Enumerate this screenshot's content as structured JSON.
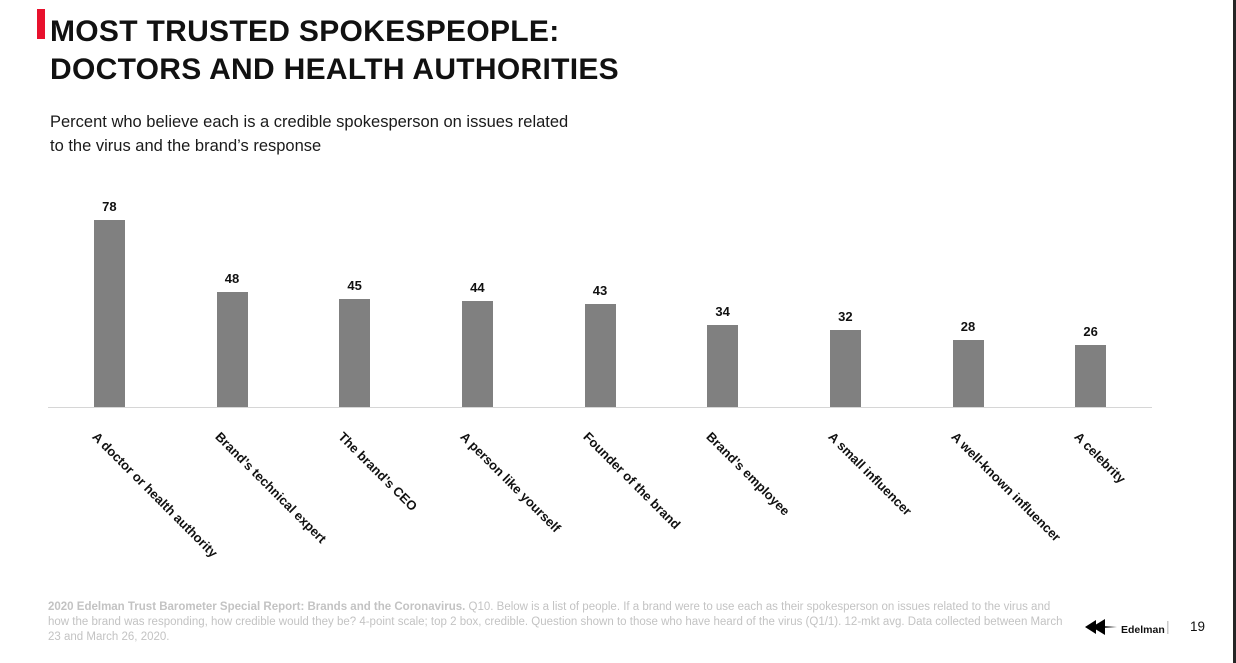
{
  "slide": {
    "title_line1": "MOST TRUSTED SPOKESPEOPLE:",
    "title_line2": "DOCTORS AND HEALTH AUTHORITIES",
    "subtitle_line1": "Percent who believe each is a credible spokesperson on issues related",
    "subtitle_line2": "to the virus and the brand’s response",
    "footer_bold": "2020 Edelman Trust Barometer Special Report: Brands and the Coronavirus.",
    "footer_rest": " Q10. Below is a list of people. If a brand were to use each as their spokesperson on issues related to the virus and how the brand was responding, how credible would they be? 4-point scale; top 2 box, credible. Question shown to those who have heard of the virus (Q1/1). 12-mkt avg. Data collected between March 23 and March 26, 2020.",
    "brand_name": "Edelman",
    "page_separator": "|",
    "page_number": "19"
  },
  "colors": {
    "accent_red": "#e8112d",
    "bar_gray": "#808080",
    "axis_gray": "#d6d6d6",
    "footer_gray": "#c3c3c3"
  },
  "chart_data": {
    "type": "bar",
    "categories": [
      "A doctor or health authority",
      "Brand’s technical expert",
      "The brand’s CEO",
      "A person like yourself",
      "Founder of the brand",
      "Brand’s employee",
      "A small influencer",
      "A well-known influencer",
      "A celebrity"
    ],
    "values": [
      78,
      48,
      45,
      44,
      43,
      34,
      32,
      28,
      26
    ],
    "title": "MOST TRUSTED SPOKESPEOPLE: DOCTORS AND HEALTH AUTHORITIES",
    "xlabel": "",
    "ylabel": "",
    "ylim": [
      0,
      100
    ],
    "grid": false,
    "legend": false,
    "bar_color": "#808080",
    "value_labels": true,
    "category_label_rotation_deg": 45
  }
}
